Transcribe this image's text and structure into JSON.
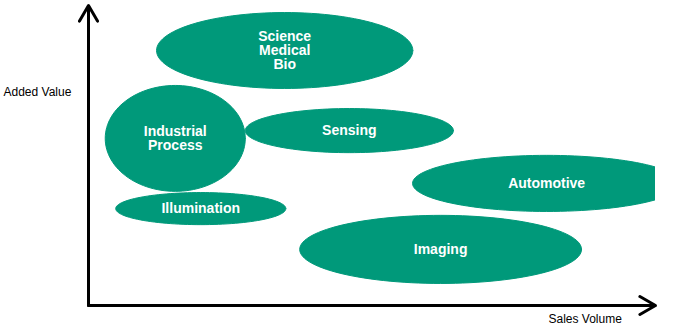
{
  "chart_data": {
    "type": "bubble",
    "x_label": "Sales Volume",
    "y_label": "Added Value",
    "categories": [
      "Science\nMedical\nBio",
      "Industrial\nProcess",
      "Sensing",
      "Automotive",
      "Illumination",
      "Imaging"
    ],
    "x": [
      34.6,
      15.3,
      46,
      80.8,
      19.8,
      62.1
    ],
    "values": [
      85,
      55.7,
      58.3,
      40.7,
      32.3,
      18.7
    ],
    "widths": [
      45.2,
      24.7,
      36.7,
      47.3,
      30,
      49.7
    ],
    "heights": [
      25.3,
      35.3,
      14.7,
      18.7,
      10.7,
      22.7
    ],
    "color": "#00997a",
    "xlim": [
      0,
      100
    ],
    "ylim": [
      0,
      100
    ],
    "tick_labels": false,
    "grid": false
  }
}
